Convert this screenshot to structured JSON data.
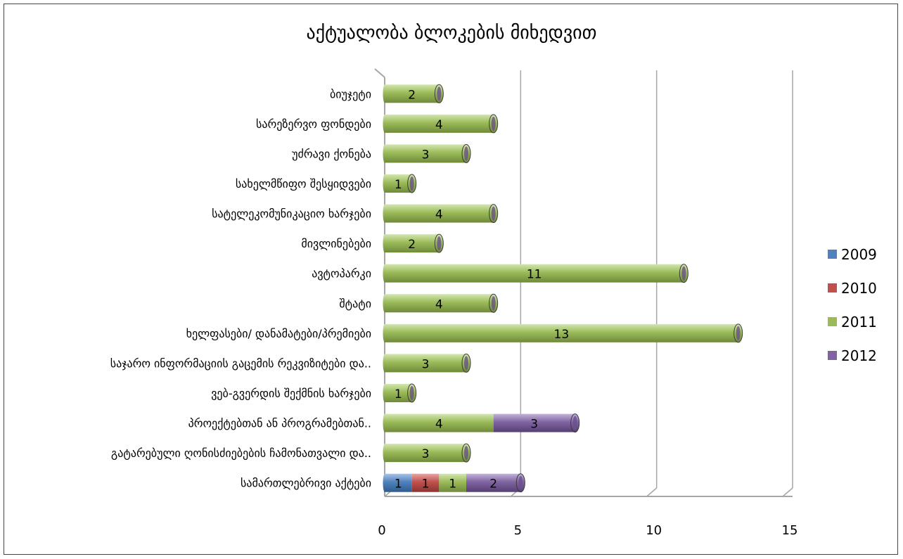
{
  "chart_data": {
    "type": "bar",
    "orientation": "horizontal",
    "stacked": true,
    "three_d": true,
    "title": "აქტუალობა ბლოკების მიხედვით",
    "xlabel": "",
    "ylabel": "",
    "xlim": [
      0,
      15
    ],
    "xticks": [
      "0",
      "5",
      "10",
      "15"
    ],
    "legend_position": "right",
    "gridlines": true,
    "categories": [
      "ბიუჯეტი",
      "სარეზერვო ფონდები",
      "უძრავი ქონება",
      "სახელმწიფო შესყიდვები",
      "სატელეკომუნიკაციო ხარჯები",
      "მივლინებები",
      "ავტოპარკი",
      "შტატი",
      "ხელფასები/    დანამატები/პრემიები",
      "საჯარო ინფორმაციის გაცემის რეკვიზიტები და..",
      "ვებ-გვერდის შექმნის ხარჯები",
      "პროექტებთან ან პროგრამებთან..",
      "გატარებული ღონისძიებების ჩამონათვალი და..",
      "სამართლებრივი აქტები"
    ],
    "series": [
      {
        "name": "2009",
        "color": "#4f81bd",
        "values": [
          0,
          0,
          0,
          0,
          0,
          0,
          0,
          0,
          0,
          0,
          0,
          0,
          0,
          1
        ]
      },
      {
        "name": "2010",
        "color": "#c0504d",
        "values": [
          0,
          0,
          0,
          0,
          0,
          0,
          0,
          0,
          0,
          0,
          0,
          0,
          0,
          1
        ]
      },
      {
        "name": "2011",
        "color": "#9bbb59",
        "values": [
          2,
          4,
          3,
          1,
          4,
          2,
          11,
          4,
          13,
          3,
          1,
          4,
          3,
          1
        ]
      },
      {
        "name": "2012",
        "color": "#8064a2",
        "values": [
          0,
          0,
          0,
          0,
          0,
          0,
          0,
          0,
          0,
          0,
          0,
          3,
          0,
          2
        ]
      }
    ]
  }
}
